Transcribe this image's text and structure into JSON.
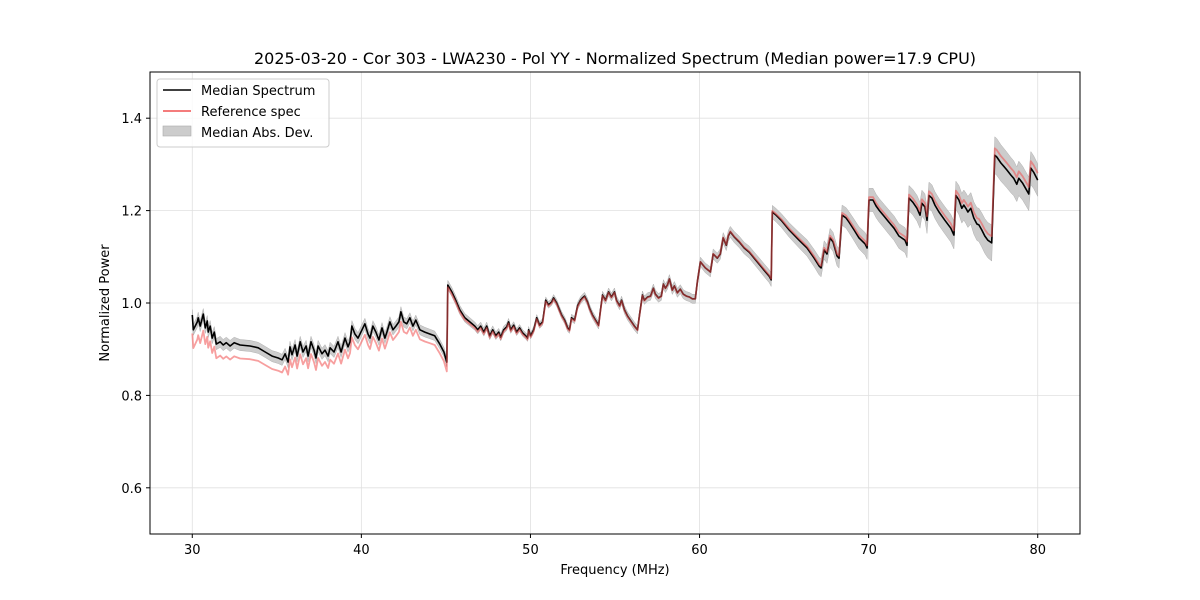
{
  "chart_data": {
    "type": "line",
    "title": "2025-03-20 - Cor 303 - LWA230 - Pol YY - Normalized Spectrum (Median power=17.9 CPU)",
    "xlabel": "Frequency (MHz)",
    "ylabel": "Normalized Power",
    "xlim": [
      27.5,
      82.5
    ],
    "ylim": [
      0.5,
      1.5
    ],
    "xticks": [
      30,
      40,
      50,
      60,
      70,
      80
    ],
    "xtick_labels": [
      "30",
      "40",
      "50",
      "60",
      "70",
      "80"
    ],
    "yticks": [
      0.6,
      0.8,
      1.0,
      1.2,
      1.4
    ],
    "ytick_labels": [
      "0.6",
      "0.8",
      "1.0",
      "1.2",
      "1.4"
    ],
    "grid": true,
    "legend": {
      "placement": "top-left",
      "entries": [
        {
          "label": "Median Spectrum",
          "kind": "line",
          "color": "#000000"
        },
        {
          "label": "Reference spec",
          "kind": "line",
          "color": "#f05050"
        },
        {
          "label": "Median Abs. Dev.",
          "kind": "patch",
          "color": "#bfbfbf"
        }
      ]
    },
    "colors": {
      "median": "#000000",
      "reference": "#f05050",
      "mad": "#bfbfbf",
      "overlap": "#8b0000"
    },
    "series": [
      {
        "name": "Median Spectrum",
        "points": [
          [
            30.0,
            0.974
          ],
          [
            30.06,
            0.942
          ],
          [
            30.3,
            0.959
          ],
          [
            30.35,
            0.968
          ],
          [
            30.47,
            0.95
          ],
          [
            30.65,
            0.976
          ],
          [
            30.77,
            0.946
          ],
          [
            30.89,
            0.961
          ],
          [
            30.94,
            0.937
          ],
          [
            31.06,
            0.95
          ],
          [
            31.18,
            0.924
          ],
          [
            31.3,
            0.937
          ],
          [
            31.42,
            0.911
          ],
          [
            31.65,
            0.916
          ],
          [
            31.83,
            0.909
          ],
          [
            32.01,
            0.914
          ],
          [
            32.24,
            0.907
          ],
          [
            32.48,
            0.914
          ],
          [
            32.83,
            0.909
          ],
          [
            33.42,
            0.907
          ],
          [
            33.9,
            0.903
          ],
          [
            34.31,
            0.894
          ],
          [
            34.72,
            0.885
          ],
          [
            35.08,
            0.881
          ],
          [
            35.31,
            0.877
          ],
          [
            35.49,
            0.89
          ],
          [
            35.67,
            0.872
          ],
          [
            35.78,
            0.905
          ],
          [
            35.9,
            0.888
          ],
          [
            36.08,
            0.909
          ],
          [
            36.2,
            0.885
          ],
          [
            36.38,
            0.916
          ],
          [
            36.55,
            0.894
          ],
          [
            36.73,
            0.907
          ],
          [
            36.85,
            0.885
          ],
          [
            37.02,
            0.916
          ],
          [
            37.2,
            0.898
          ],
          [
            37.32,
            0.881
          ],
          [
            37.44,
            0.907
          ],
          [
            37.67,
            0.89
          ],
          [
            37.85,
            0.898
          ],
          [
            38.03,
            0.885
          ],
          [
            38.15,
            0.903
          ],
          [
            38.38,
            0.894
          ],
          [
            38.62,
            0.916
          ],
          [
            38.8,
            0.894
          ],
          [
            39.03,
            0.924
          ],
          [
            39.21,
            0.905
          ],
          [
            39.33,
            0.916
          ],
          [
            39.44,
            0.95
          ],
          [
            39.62,
            0.933
          ],
          [
            39.8,
            0.924
          ],
          [
            40.04,
            0.942
          ],
          [
            40.21,
            0.955
          ],
          [
            40.39,
            0.933
          ],
          [
            40.51,
            0.924
          ],
          [
            40.68,
            0.95
          ],
          [
            40.86,
            0.937
          ],
          [
            41.04,
            0.92
          ],
          [
            41.22,
            0.946
          ],
          [
            41.39,
            0.924
          ],
          [
            41.51,
            0.937
          ],
          [
            41.69,
            0.959
          ],
          [
            41.87,
            0.942
          ],
          [
            42.04,
            0.95
          ],
          [
            42.22,
            0.959
          ],
          [
            42.34,
            0.981
          ],
          [
            42.51,
            0.959
          ],
          [
            42.69,
            0.955
          ],
          [
            42.87,
            0.968
          ],
          [
            43.05,
            0.95
          ],
          [
            43.22,
            0.963
          ],
          [
            43.46,
            0.942
          ],
          [
            43.75,
            0.937
          ],
          [
            44.05,
            0.933
          ],
          [
            44.34,
            0.929
          ],
          [
            44.64,
            0.911
          ],
          [
            44.88,
            0.894
          ],
          [
            45.05,
            0.872
          ],
          [
            45.11,
            1.039
          ],
          [
            45.35,
            1.024
          ],
          [
            45.58,
            1.006
          ],
          [
            45.82,
            0.985
          ],
          [
            46.12,
            0.968
          ],
          [
            46.41,
            0.959
          ],
          [
            46.71,
            0.95
          ],
          [
            46.88,
            0.942
          ],
          [
            47.06,
            0.95
          ],
          [
            47.24,
            0.937
          ],
          [
            47.41,
            0.95
          ],
          [
            47.59,
            0.929
          ],
          [
            47.77,
            0.942
          ],
          [
            47.95,
            0.929
          ],
          [
            48.12,
            0.937
          ],
          [
            48.24,
            0.926
          ],
          [
            48.42,
            0.942
          ],
          [
            48.59,
            0.948
          ],
          [
            48.71,
            0.959
          ],
          [
            48.83,
            0.942
          ],
          [
            49.01,
            0.952
          ],
          [
            49.18,
            0.937
          ],
          [
            49.36,
            0.946
          ],
          [
            49.54,
            0.935
          ],
          [
            49.72,
            0.929
          ],
          [
            49.83,
            0.924
          ],
          [
            49.89,
            0.942
          ],
          [
            50.01,
            0.929
          ],
          [
            50.19,
            0.942
          ],
          [
            50.37,
            0.968
          ],
          [
            50.54,
            0.952
          ],
          [
            50.72,
            0.959
          ],
          [
            50.9,
            1.006
          ],
          [
            51.07,
            0.996
          ],
          [
            51.25,
            1.002
          ],
          [
            51.37,
            1.011
          ],
          [
            51.55,
            1.0
          ],
          [
            51.72,
            0.985
          ],
          [
            51.84,
            0.974
          ],
          [
            52.02,
            0.963
          ],
          [
            52.2,
            0.946
          ],
          [
            52.31,
            0.942
          ],
          [
            52.43,
            0.968
          ],
          [
            52.61,
            0.963
          ],
          [
            52.79,
            0.994
          ],
          [
            52.96,
            1.006
          ],
          [
            53.08,
            1.011
          ],
          [
            53.2,
            1.015
          ],
          [
            53.38,
            1.002
          ],
          [
            53.49,
            0.989
          ],
          [
            53.67,
            0.974
          ],
          [
            53.91,
            0.959
          ],
          [
            54.03,
            0.952
          ],
          [
            54.14,
            0.985
          ],
          [
            54.26,
            1.017
          ],
          [
            54.44,
            1.006
          ],
          [
            54.62,
            1.024
          ],
          [
            54.79,
            1.013
          ],
          [
            54.97,
            1.024
          ],
          [
            55.09,
            1.006
          ],
          [
            55.27,
            0.994
          ],
          [
            55.39,
            1.006
          ],
          [
            55.56,
            0.985
          ],
          [
            55.74,
            0.972
          ],
          [
            55.98,
            0.959
          ],
          [
            56.15,
            0.95
          ],
          [
            56.33,
            0.942
          ],
          [
            56.45,
            0.974
          ],
          [
            56.62,
            1.017
          ],
          [
            56.74,
            1.006
          ],
          [
            56.92,
            1.013
          ],
          [
            57.1,
            1.015
          ],
          [
            57.27,
            1.032
          ],
          [
            57.39,
            1.019
          ],
          [
            57.57,
            1.011
          ],
          [
            57.74,
            1.015
          ],
          [
            57.86,
            1.041
          ],
          [
            57.98,
            1.032
          ],
          [
            58.1,
            1.039
          ],
          [
            58.22,
            1.052
          ],
          [
            58.39,
            1.028
          ],
          [
            58.51,
            1.037
          ],
          [
            58.69,
            1.022
          ],
          [
            58.86,
            1.03
          ],
          [
            59.04,
            1.019
          ],
          [
            59.22,
            1.015
          ],
          [
            59.4,
            1.013
          ],
          [
            59.57,
            1.009
          ],
          [
            59.75,
            1.009
          ],
          [
            59.87,
            1.045
          ],
          [
            60.05,
            1.089
          ],
          [
            60.16,
            1.084
          ],
          [
            60.34,
            1.076
          ],
          [
            60.52,
            1.071
          ],
          [
            60.64,
            1.067
          ],
          [
            60.81,
            1.106
          ],
          [
            61.05,
            1.097
          ],
          [
            61.23,
            1.106
          ],
          [
            61.4,
            1.141
          ],
          [
            61.58,
            1.125
          ],
          [
            61.7,
            1.145
          ],
          [
            61.82,
            1.154
          ],
          [
            62.05,
            1.143
          ],
          [
            62.35,
            1.132
          ],
          [
            62.64,
            1.119
          ],
          [
            62.94,
            1.11
          ],
          [
            63.23,
            1.097
          ],
          [
            63.53,
            1.084
          ],
          [
            63.82,
            1.071
          ],
          [
            64.12,
            1.058
          ],
          [
            64.24,
            1.05
          ],
          [
            64.3,
            1.197
          ],
          [
            64.53,
            1.19
          ],
          [
            64.83,
            1.179
          ],
          [
            65.3,
            1.158
          ],
          [
            65.89,
            1.136
          ],
          [
            66.36,
            1.119
          ],
          [
            66.78,
            1.097
          ],
          [
            67.07,
            1.08
          ],
          [
            67.19,
            1.076
          ],
          [
            67.37,
            1.115
          ],
          [
            67.54,
            1.106
          ],
          [
            67.72,
            1.141
          ],
          [
            67.9,
            1.132
          ],
          [
            68.13,
            1.102
          ],
          [
            68.25,
            1.097
          ],
          [
            68.43,
            1.19
          ],
          [
            68.67,
            1.184
          ],
          [
            68.84,
            1.175
          ],
          [
            69.14,
            1.158
          ],
          [
            69.43,
            1.141
          ],
          [
            69.79,
            1.128
          ],
          [
            69.91,
            1.119
          ],
          [
            70.02,
            1.223
          ],
          [
            70.26,
            1.223
          ],
          [
            70.44,
            1.21
          ],
          [
            70.61,
            1.201
          ],
          [
            70.91,
            1.188
          ],
          [
            71.2,
            1.175
          ],
          [
            71.5,
            1.162
          ],
          [
            71.79,
            1.145
          ],
          [
            72.15,
            1.136
          ],
          [
            72.27,
            1.125
          ],
          [
            72.39,
            1.227
          ],
          [
            72.62,
            1.218
          ],
          [
            72.86,
            1.205
          ],
          [
            73.04,
            1.19
          ],
          [
            73.15,
            1.216
          ],
          [
            73.33,
            1.208
          ],
          [
            73.45,
            1.179
          ],
          [
            73.57,
            1.233
          ],
          [
            73.74,
            1.227
          ],
          [
            73.92,
            1.212
          ],
          [
            74.16,
            1.197
          ],
          [
            74.51,
            1.179
          ],
          [
            74.86,
            1.162
          ],
          [
            75.04,
            1.147
          ],
          [
            75.16,
            1.233
          ],
          [
            75.34,
            1.223
          ],
          [
            75.51,
            1.205
          ],
          [
            75.63,
            1.212
          ],
          [
            75.75,
            1.205
          ],
          [
            75.87,
            1.197
          ],
          [
            76.04,
            1.205
          ],
          [
            76.22,
            1.184
          ],
          [
            76.4,
            1.171
          ],
          [
            76.52,
            1.169
          ],
          [
            76.69,
            1.158
          ],
          [
            76.87,
            1.145
          ],
          [
            77.05,
            1.136
          ],
          [
            77.28,
            1.13
          ],
          [
            77.46,
            1.32
          ],
          [
            77.58,
            1.316
          ],
          [
            77.82,
            1.303
          ],
          [
            77.99,
            1.296
          ],
          [
            78.17,
            1.288
          ],
          [
            78.41,
            1.277
          ],
          [
            78.58,
            1.27
          ],
          [
            78.76,
            1.257
          ],
          [
            78.88,
            1.27
          ],
          [
            79.11,
            1.259
          ],
          [
            79.35,
            1.244
          ],
          [
            79.47,
            1.236
          ],
          [
            79.59,
            1.292
          ],
          [
            79.76,
            1.283
          ],
          [
            80.0,
            1.266
          ]
        ]
      },
      {
        "name": "Reference spec",
        "offset_from_median": [
          [
            30,
            -0.04
          ],
          [
            31.5,
            -0.03
          ],
          [
            39,
            -0.025
          ],
          [
            44,
            -0.02
          ],
          [
            45.05,
            -0.02
          ],
          [
            45.1,
            -0.005
          ],
          [
            50,
            -0.003
          ],
          [
            60,
            0.0
          ],
          [
            65,
            0.003
          ],
          [
            70,
            0.006
          ],
          [
            75,
            0.01
          ],
          [
            77.5,
            0.015
          ],
          [
            80,
            0.015
          ]
        ]
      },
      {
        "name": "Median Abs. Dev.",
        "half_width": [
          [
            30,
            0.012
          ],
          [
            40,
            0.012
          ],
          [
            45,
            0.01
          ],
          [
            50,
            0.007
          ],
          [
            60,
            0.01
          ],
          [
            65,
            0.015
          ],
          [
            70,
            0.025
          ],
          [
            75,
            0.03
          ],
          [
            77.5,
            0.04
          ],
          [
            80,
            0.035
          ]
        ]
      }
    ]
  }
}
